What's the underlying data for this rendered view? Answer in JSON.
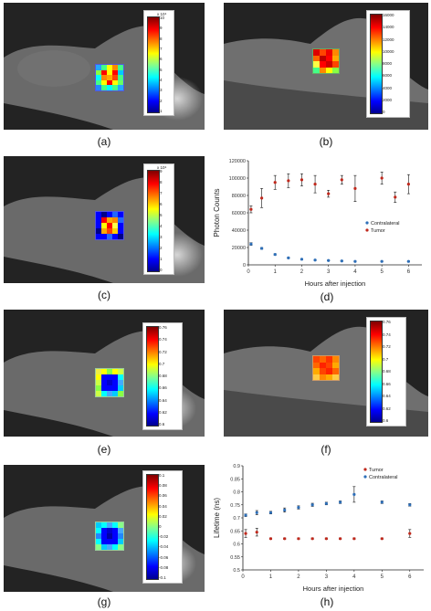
{
  "captions": [
    "(a)",
    "(b)",
    "(c)",
    "(d)",
    "(e)",
    "(f)",
    "(g)",
    "(h)"
  ],
  "colorbars": {
    "a": {
      "exponent": "x 10⁴",
      "ticks": [
        "10",
        "9",
        "8",
        "7",
        "6",
        "5",
        "4",
        "3",
        "2",
        "1"
      ]
    },
    "b": {
      "ticks": [
        "16000",
        "14000",
        "12000",
        "10000",
        "8000",
        "6000",
        "4000",
        "2000",
        "0"
      ]
    },
    "c": {
      "exponent": "x 10⁴",
      "ticks": [
        "9",
        "8",
        "7",
        "6",
        "5",
        "4",
        "3",
        "2",
        "1",
        "0"
      ]
    },
    "e": {
      "ticks": [
        "0.76",
        "0.74",
        "0.72",
        "0.7",
        "0.68",
        "0.66",
        "0.64",
        "0.62",
        "0.6"
      ]
    },
    "f": {
      "ticks": [
        "0.76",
        "0.74",
        "0.72",
        "0.7",
        "0.68",
        "0.66",
        "0.64",
        "0.62",
        "0.6"
      ]
    },
    "g": {
      "ticks": [
        "0.1",
        "0.08",
        "0.06",
        "0.04",
        "0.02",
        "0",
        "-0.02",
        "-0.04",
        "-0.06",
        "-0.08",
        "-0.1"
      ]
    }
  },
  "chart_data": [
    {
      "type": "scatter",
      "panel": "(d)",
      "xlabel": "Hours after injection",
      "ylabel": "Photon Counts",
      "xlim": [
        0,
        6.5
      ],
      "ylim": [
        0,
        120000
      ],
      "xticks": [
        0,
        1,
        2,
        3,
        4,
        5,
        6
      ],
      "yticks": [
        "0",
        "20000",
        "40000",
        "60000",
        "80000",
        "100000",
        "120000"
      ],
      "legend_position": "right",
      "series": [
        {
          "name": "Contralateral",
          "color": "#2e6fb8",
          "x": [
            0.1,
            0.5,
            1,
            1.5,
            2,
            2.5,
            3,
            3.5,
            4,
            5,
            6
          ],
          "y": [
            24000,
            19000,
            12000,
            8000,
            6500,
            5500,
            5000,
            4500,
            4000,
            4000,
            4000
          ],
          "err": [
            1500,
            1000,
            800,
            500,
            500,
            400,
            400,
            300,
            300,
            300,
            300
          ]
        },
        {
          "name": "Tumor",
          "color": "#c0281c",
          "x": [
            0.1,
            0.5,
            1,
            1.5,
            2,
            2.5,
            3,
            3.5,
            4,
            5,
            5.5,
            6
          ],
          "y": [
            64000,
            77000,
            95000,
            97000,
            98000,
            93000,
            82000,
            98000,
            88000,
            100000,
            78000,
            93000
          ],
          "err": [
            4000,
            11000,
            8000,
            8000,
            7000,
            10000,
            4000,
            5000,
            15000,
            7000,
            6000,
            11000
          ]
        }
      ]
    },
    {
      "type": "scatter",
      "panel": "(h)",
      "xlabel": "Hours after injection",
      "ylabel": "Lifetime (ns)",
      "xlim": [
        0,
        6.5
      ],
      "ylim": [
        0.5,
        0.9
      ],
      "xticks": [
        0,
        1,
        2,
        3,
        4,
        5,
        6
      ],
      "yticks": [
        "0.5",
        "0.55",
        "0.6",
        "0.65",
        "0.7",
        "0.75",
        "0.8",
        "0.85",
        "0.9"
      ],
      "legend_position": "top-right",
      "series": [
        {
          "name": "Tumor",
          "color": "#c0281c",
          "x": [
            0.1,
            0.5,
            1,
            1.5,
            2,
            2.5,
            3,
            3.5,
            4,
            5,
            6
          ],
          "y": [
            0.64,
            0.645,
            0.62,
            0.62,
            0.62,
            0.62,
            0.62,
            0.62,
            0.62,
            0.62,
            0.64
          ],
          "err": [
            0.015,
            0.015,
            0.003,
            0.003,
            0.003,
            0.003,
            0.003,
            0.003,
            0.003,
            0.003,
            0.015
          ]
        },
        {
          "name": "Contralateral",
          "color": "#2e6fb8",
          "x": [
            0.1,
            0.5,
            1,
            1.5,
            2,
            2.5,
            3,
            3.5,
            4,
            5,
            6
          ],
          "y": [
            0.71,
            0.72,
            0.72,
            0.73,
            0.74,
            0.75,
            0.755,
            0.76,
            0.79,
            0.76,
            0.75
          ],
          "err": [
            0.005,
            0.008,
            0.005,
            0.008,
            0.006,
            0.006,
            0.005,
            0.005,
            0.03,
            0.005,
            0.005
          ]
        }
      ]
    }
  ]
}
